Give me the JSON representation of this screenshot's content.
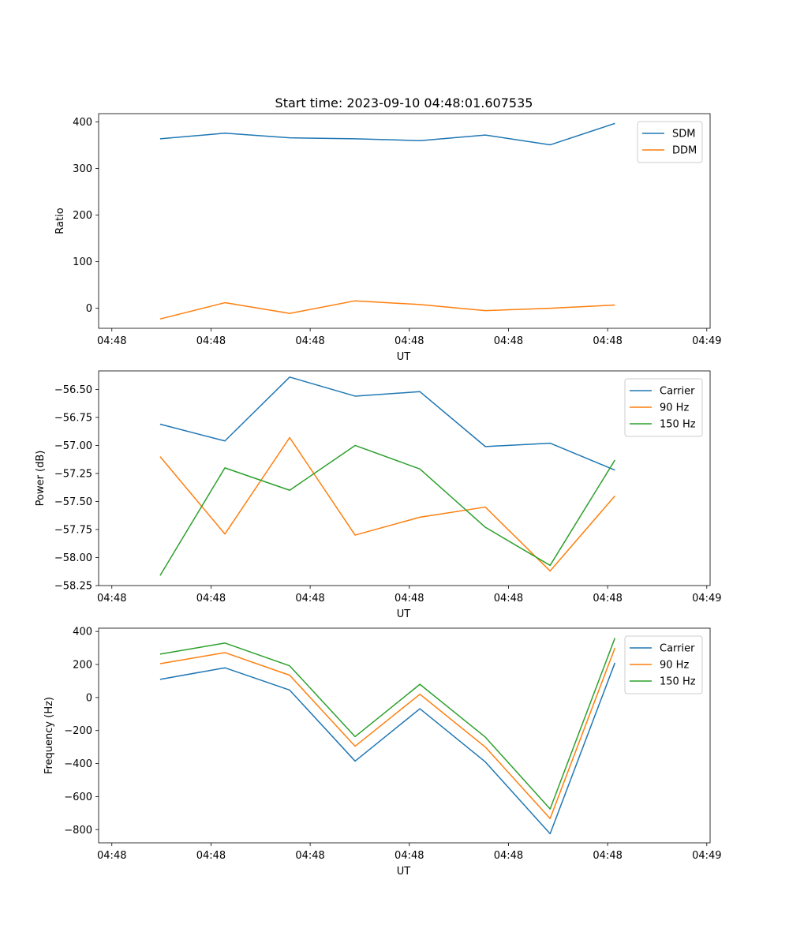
{
  "figure_title": "Start time: 2023-09-10 04:48:01.607535",
  "chart_data": [
    {
      "type": "line",
      "title": "Start time: 2023-09-10 04:48:01.607535",
      "xlabel": "UT",
      "ylabel": "Ratio",
      "xlim": [
        0,
        9.25
      ],
      "ylim": [
        -43,
        418
      ],
      "x_ticks": [
        {
          "value": 0.2,
          "label": "04:48"
        },
        {
          "value": 1.7,
          "label": "04:48"
        },
        {
          "value": 3.2,
          "label": "04:48"
        },
        {
          "value": 4.7,
          "label": "04:48"
        },
        {
          "value": 6.2,
          "label": "04:48"
        },
        {
          "value": 7.7,
          "label": "04:48"
        },
        {
          "value": 9.2,
          "label": "04:49"
        }
      ],
      "y_ticks": [
        {
          "value": 400,
          "label": "400"
        },
        {
          "value": 300,
          "label": "300"
        },
        {
          "value": 200,
          "label": "200"
        },
        {
          "value": 100,
          "label": "100"
        },
        {
          "value": 0,
          "label": "0"
        }
      ],
      "x": [
        0.93,
        1.91,
        2.89,
        3.88,
        4.86,
        5.85,
        6.83,
        7.81
      ],
      "series": [
        {
          "name": "SDM",
          "color": "#1f77b4",
          "values": [
            364,
            376,
            366,
            364,
            360,
            372,
            351,
            397
          ]
        },
        {
          "name": "DDM",
          "color": "#ff7f0e",
          "values": [
            -23,
            12,
            -11,
            16,
            8,
            -5,
            0,
            7
          ]
        }
      ],
      "legend": "top-right"
    },
    {
      "type": "line",
      "xlabel": "UT",
      "ylabel": "Power (dB)",
      "xlim": [
        0,
        9.25
      ],
      "ylim": [
        -58.25,
        -56.335
      ],
      "x_ticks": [
        {
          "value": 0.2,
          "label": "04:48"
        },
        {
          "value": 1.7,
          "label": "04:48"
        },
        {
          "value": 3.2,
          "label": "04:48"
        },
        {
          "value": 4.7,
          "label": "04:48"
        },
        {
          "value": 6.2,
          "label": "04:48"
        },
        {
          "value": 7.7,
          "label": "04:48"
        },
        {
          "value": 9.2,
          "label": "04:49"
        }
      ],
      "y_ticks": [
        {
          "value": -56.5,
          "label": "−56.50"
        },
        {
          "value": -56.75,
          "label": "−56.75"
        },
        {
          "value": -57.0,
          "label": "−57.00"
        },
        {
          "value": -57.25,
          "label": "−57.25"
        },
        {
          "value": -57.5,
          "label": "−57.50"
        },
        {
          "value": -57.75,
          "label": "−57.75"
        },
        {
          "value": -58.0,
          "label": "−58.00"
        },
        {
          "value": -58.25,
          "label": "−58.25"
        }
      ],
      "x": [
        0.93,
        1.91,
        2.89,
        3.88,
        4.86,
        5.85,
        6.83,
        7.81
      ],
      "series": [
        {
          "name": "Carrier",
          "color": "#1f77b4",
          "values": [
            -56.81,
            -56.96,
            -56.39,
            -56.56,
            -56.52,
            -57.01,
            -56.98,
            -57.22
          ]
        },
        {
          "name": "90 Hz",
          "color": "#ff7f0e",
          "values": [
            -57.1,
            -57.79,
            -56.93,
            -57.8,
            -57.64,
            -57.55,
            -58.12,
            -57.45
          ]
        },
        {
          "name": "150 Hz",
          "color": "#2ca02c",
          "values": [
            -58.16,
            -57.2,
            -57.4,
            -57.0,
            -57.21,
            -57.73,
            -58.07,
            -57.13
          ]
        }
      ],
      "legend": "top-right"
    },
    {
      "type": "line",
      "xlabel": "UT",
      "ylabel": "Frequency (Hz)",
      "xlim": [
        0,
        9.25
      ],
      "ylim": [
        -880,
        420
      ],
      "x_ticks": [
        {
          "value": 0.2,
          "label": "04:48"
        },
        {
          "value": 1.7,
          "label": "04:48"
        },
        {
          "value": 3.2,
          "label": "04:48"
        },
        {
          "value": 4.7,
          "label": "04:48"
        },
        {
          "value": 6.2,
          "label": "04:48"
        },
        {
          "value": 7.7,
          "label": "04:48"
        },
        {
          "value": 9.2,
          "label": "04:49"
        }
      ],
      "y_ticks": [
        {
          "value": 400,
          "label": "400"
        },
        {
          "value": 200,
          "label": "200"
        },
        {
          "value": 0,
          "label": "0"
        },
        {
          "value": -200,
          "label": "−200"
        },
        {
          "value": -400,
          "label": "−400"
        },
        {
          "value": -600,
          "label": "−600"
        },
        {
          "value": -800,
          "label": "−800"
        }
      ],
      "x": [
        0.93,
        1.91,
        2.89,
        3.88,
        4.86,
        5.85,
        6.83,
        7.81
      ],
      "series": [
        {
          "name": "Carrier",
          "color": "#1f77b4",
          "values": [
            110,
            180,
            45,
            -385,
            -68,
            -390,
            -825,
            210
          ]
        },
        {
          "name": "90 Hz",
          "color": "#ff7f0e",
          "values": [
            205,
            272,
            135,
            -295,
            20,
            -300,
            -733,
            300
          ]
        },
        {
          "name": "150 Hz",
          "color": "#2ca02c",
          "values": [
            263,
            330,
            192,
            -237,
            80,
            -240,
            -675,
            360
          ]
        }
      ],
      "legend": "top-right"
    }
  ]
}
